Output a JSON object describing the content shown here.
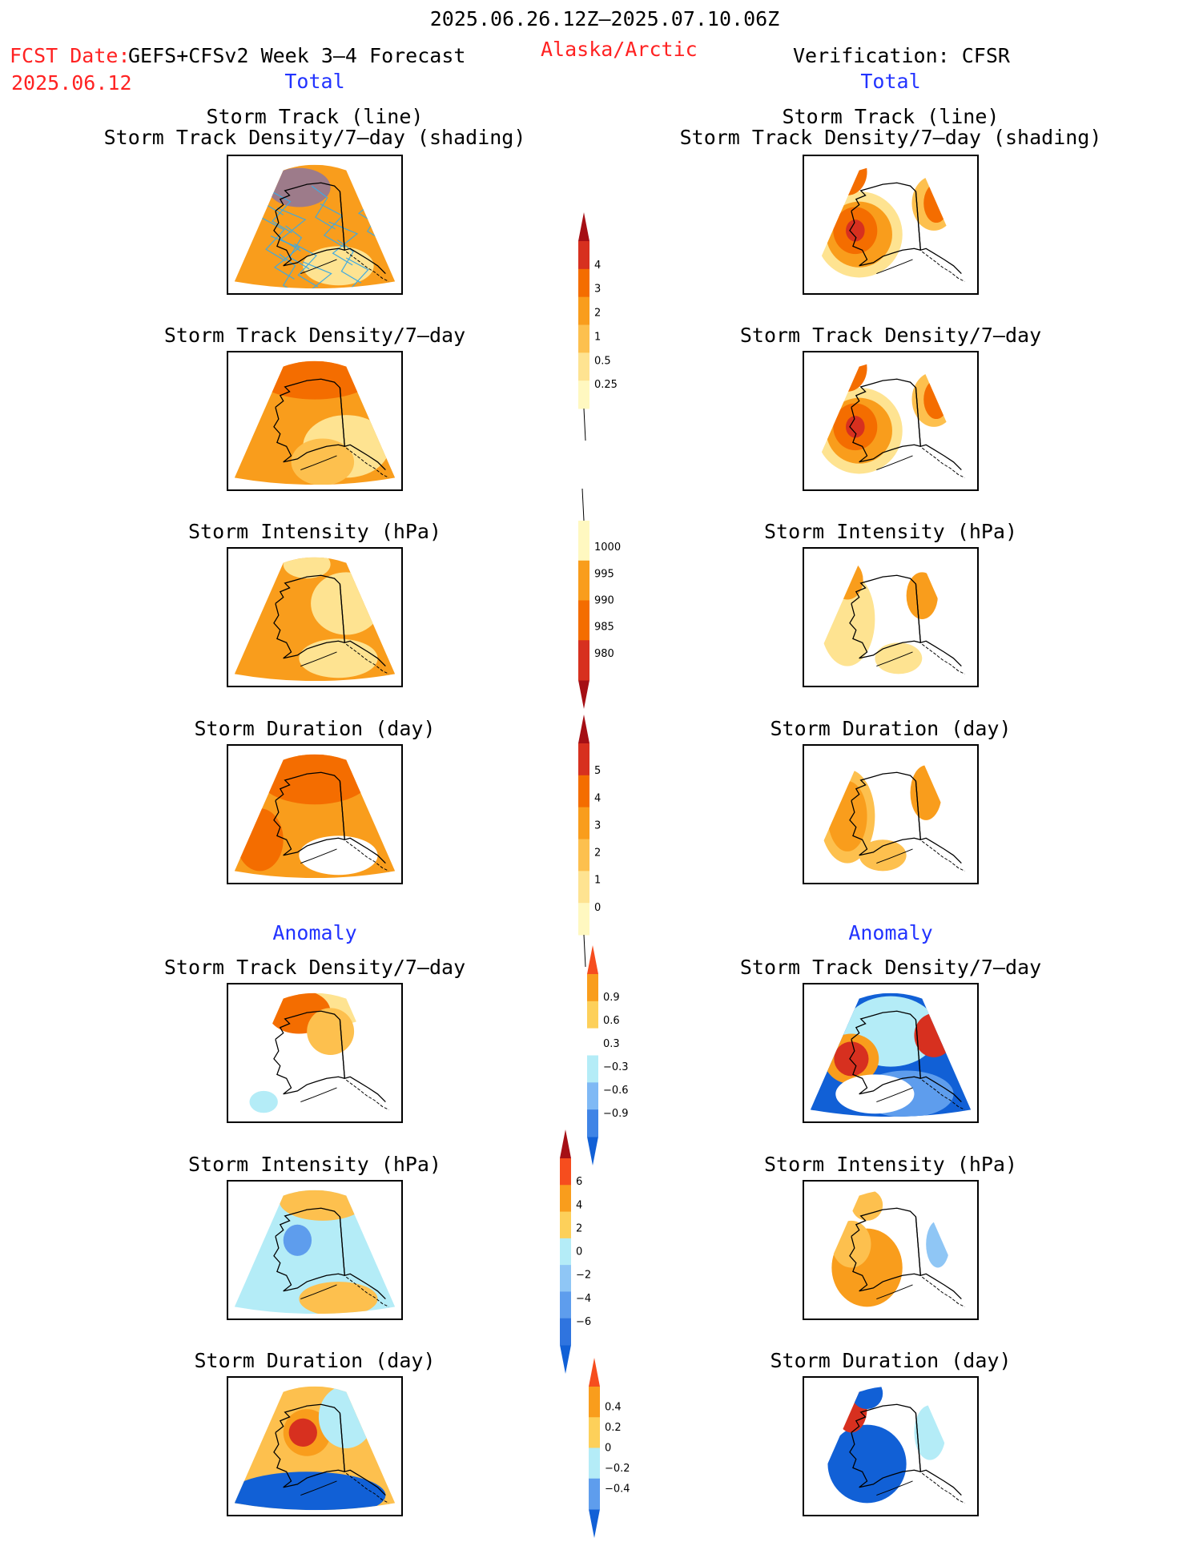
{
  "header": {
    "date_range": "2025.06.26.12Z–2025.07.10.06Z",
    "fcst_label": "FCST Date:",
    "model_label": "GEFS+CFSv2 Week 3–4 Forecast",
    "fcst_date": "2025.06.12",
    "region": "Alaska/Arctic",
    "verification": "Verification: CFSR"
  },
  "sections": {
    "total_left": "Total",
    "total_right": "Total",
    "anomaly_left": "Anomaly",
    "anomaly_right": "Anomaly"
  },
  "panels": {
    "track_line": "Storm Track (line)",
    "track_shading": "Storm Track Density/7–day (shading)",
    "track_density": "Storm Track Density/7–day",
    "intensity": "Storm Intensity (hPa)",
    "duration": "Storm Duration (day)"
  },
  "colorbars": {
    "density_total": {
      "labels": [
        "4",
        "3",
        "2",
        "1",
        "0.5",
        "0.25"
      ],
      "colors": [
        "#a50f15",
        "#d7301f",
        "#f46d00",
        "#f99d1c",
        "#fdc04e",
        "#fee391",
        "#fff8c0"
      ]
    },
    "intensity_total": {
      "labels": [
        "1000",
        "995",
        "990",
        "985",
        "980"
      ],
      "colors": [
        "#fff8c0",
        "#f99d1c",
        "#f46d00",
        "#d7301f",
        "#a50f15"
      ]
    },
    "duration_total": {
      "labels": [
        "5",
        "4",
        "3",
        "2",
        "1",
        "0"
      ],
      "colors": [
        "#a50f15",
        "#d7301f",
        "#f46d00",
        "#f99d1c",
        "#fdc04e",
        "#fee391",
        "#fff8c0"
      ]
    },
    "density_anom": {
      "labels": [
        "0.9",
        "0.6",
        "0.3",
        "−0.3",
        "−0.6",
        "−0.9"
      ],
      "colors": [
        "#f64d1e",
        "#f99d1c",
        "#fdd05a",
        "#ffffff",
        "#b4ecf7",
        "#7fb9f5",
        "#3f84e6",
        "#1160d6"
      ]
    },
    "intensity_anom": {
      "labels": [
        "6",
        "4",
        "2",
        "0",
        "−2",
        "−4",
        "−6"
      ],
      "colors": [
        "#a50f15",
        "#f64d1e",
        "#f99d1c",
        "#fdd05a",
        "#b4ecf7",
        "#8fc6f5",
        "#5e9ded",
        "#2f74df",
        "#1160d6"
      ]
    },
    "duration_anom": {
      "labels": [
        "0.4",
        "0.2",
        "0",
        "−0.2",
        "−0.4"
      ],
      "colors": [
        "#f64d1e",
        "#f99d1c",
        "#fdd05a",
        "#b4ecf7",
        "#5e9ded",
        "#1160d6"
      ]
    }
  }
}
